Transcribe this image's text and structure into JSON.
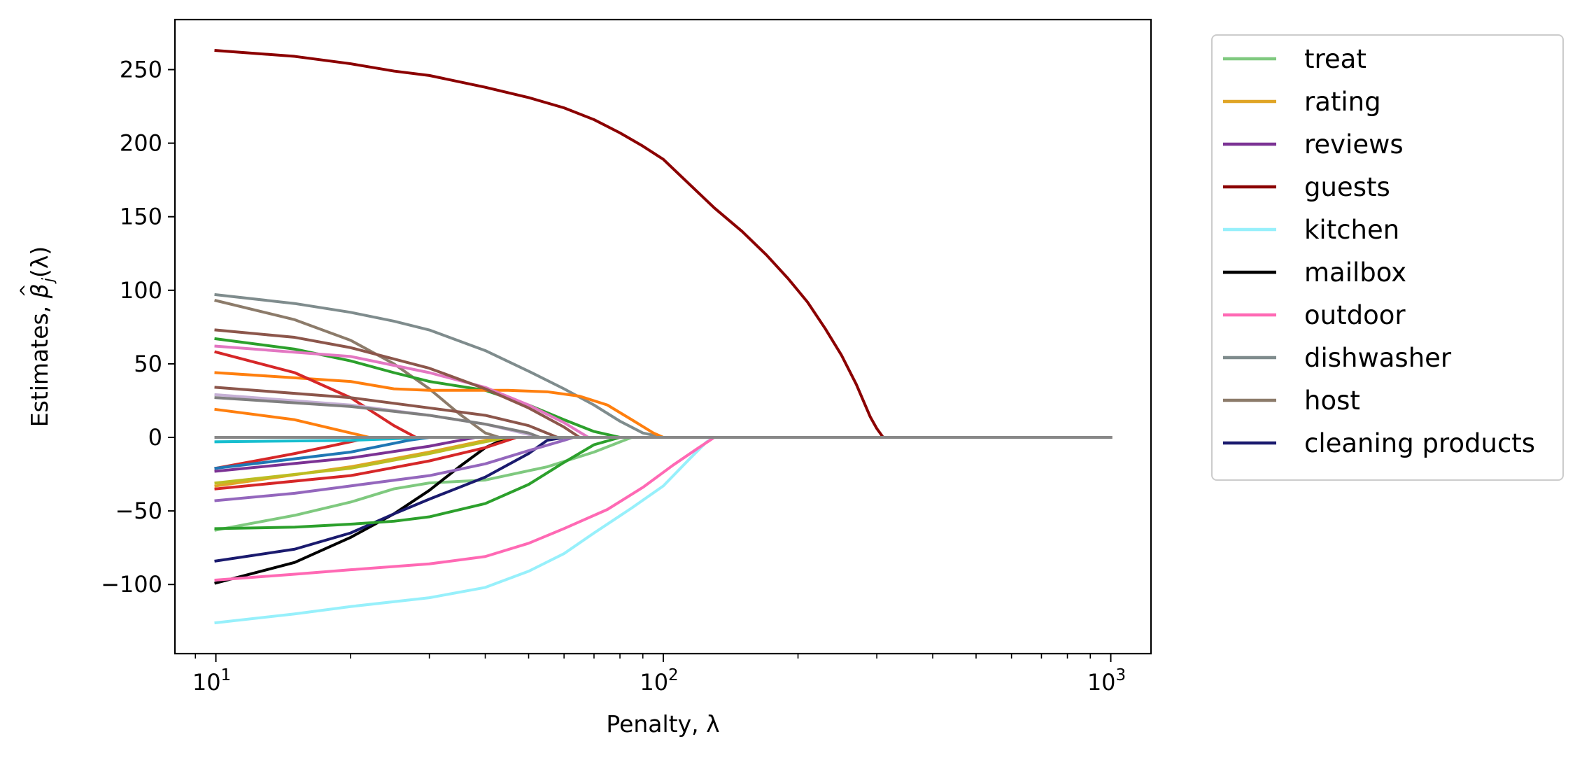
{
  "chart_data": {
    "type": "line",
    "title": "",
    "xlabel": "Penalty, λ",
    "ylabel_prefix": "Estimates, ",
    "ylabel_beta": "β",
    "ylabel_hat": "^",
    "ylabel_sub": "j",
    "ylabel_suffix": "(λ)",
    "xscale": "log",
    "xlim": [
      8.1,
      1230
    ],
    "ylim": [
      -147,
      284
    ],
    "xticks": [
      {
        "base": "10",
        "exp": "1",
        "value": 10
      },
      {
        "base": "10",
        "exp": "2",
        "value": 100
      },
      {
        "base": "10",
        "exp": "3",
        "value": 1000
      }
    ],
    "yticks": [
      {
        "value": 250,
        "label": "250"
      },
      {
        "value": 200,
        "label": "200"
      },
      {
        "value": 150,
        "label": "150"
      },
      {
        "value": 100,
        "label": "100"
      },
      {
        "value": 50,
        "label": "50"
      },
      {
        "value": 0,
        "label": "0"
      },
      {
        "value": -50,
        "label": "−50"
      },
      {
        "value": -100,
        "label": "−100"
      }
    ],
    "grid": false,
    "legend_position": "outside-right",
    "series": [
      {
        "name": "treat",
        "color": "#7fc97f",
        "legend": true,
        "points": [
          [
            10,
            -63
          ],
          [
            15,
            -53
          ],
          [
            20,
            -44
          ],
          [
            25,
            -35
          ],
          [
            30,
            -31
          ],
          [
            40,
            -29
          ],
          [
            55,
            -20
          ],
          [
            70,
            -10
          ],
          [
            85,
            0
          ],
          [
            1000,
            0
          ]
        ]
      },
      {
        "name": "rating",
        "color": "#e0a526",
        "legend": true,
        "points": [
          [
            10,
            -33
          ],
          [
            20,
            -20
          ],
          [
            30,
            -10
          ],
          [
            40,
            -2
          ],
          [
            45,
            0
          ],
          [
            1000,
            0
          ]
        ]
      },
      {
        "name": "reviews",
        "color": "#7b3294",
        "legend": true,
        "points": [
          [
            10,
            -23
          ],
          [
            20,
            -14
          ],
          [
            30,
            -6
          ],
          [
            38,
            0
          ],
          [
            1000,
            0
          ]
        ]
      },
      {
        "name": "guests",
        "color": "#8b0000",
        "legend": true,
        "points": [
          [
            10,
            263
          ],
          [
            15,
            259
          ],
          [
            20,
            254
          ],
          [
            25,
            249
          ],
          [
            30,
            246
          ],
          [
            40,
            238
          ],
          [
            50,
            231
          ],
          [
            60,
            224
          ],
          [
            70,
            216
          ],
          [
            80,
            207
          ],
          [
            90,
            198
          ],
          [
            100,
            189
          ],
          [
            110,
            177
          ],
          [
            130,
            156
          ],
          [
            150,
            140
          ],
          [
            170,
            124
          ],
          [
            190,
            108
          ],
          [
            210,
            92
          ],
          [
            230,
            74
          ],
          [
            250,
            56
          ],
          [
            270,
            36
          ],
          [
            290,
            14
          ],
          [
            300,
            6
          ],
          [
            310,
            0
          ],
          [
            1000,
            0
          ]
        ]
      },
      {
        "name": "kitchen",
        "color": "#97f0fb",
        "legend": true,
        "points": [
          [
            10,
            -126
          ],
          [
            15,
            -120
          ],
          [
            20,
            -115
          ],
          [
            30,
            -109
          ],
          [
            40,
            -102
          ],
          [
            50,
            -91
          ],
          [
            60,
            -79
          ],
          [
            70,
            -65
          ],
          [
            85,
            -48
          ],
          [
            100,
            -33
          ],
          [
            115,
            -14
          ],
          [
            125,
            -3
          ],
          [
            130,
            0
          ],
          [
            1000,
            0
          ]
        ]
      },
      {
        "name": "mailbox",
        "color": "#000000",
        "legend": true,
        "points": [
          [
            10,
            -99
          ],
          [
            15,
            -85
          ],
          [
            20,
            -68
          ],
          [
            25,
            -52
          ],
          [
            30,
            -36
          ],
          [
            35,
            -20
          ],
          [
            40,
            -7
          ],
          [
            45,
            0
          ],
          [
            1000,
            0
          ]
        ]
      },
      {
        "name": "outdoor",
        "color": "#ff69b4",
        "legend": true,
        "points": [
          [
            10,
            -97
          ],
          [
            15,
            -93
          ],
          [
            20,
            -90
          ],
          [
            30,
            -86
          ],
          [
            40,
            -81
          ],
          [
            50,
            -72
          ],
          [
            60,
            -62
          ],
          [
            75,
            -49
          ],
          [
            90,
            -34
          ],
          [
            105,
            -19
          ],
          [
            120,
            -7
          ],
          [
            130,
            0
          ],
          [
            1000,
            0
          ]
        ]
      },
      {
        "name": "dishwasher",
        "color": "#7f8c8d",
        "legend": true,
        "points": [
          [
            10,
            97
          ],
          [
            15,
            91
          ],
          [
            20,
            85
          ],
          [
            25,
            79
          ],
          [
            30,
            73
          ],
          [
            40,
            59
          ],
          [
            50,
            45
          ],
          [
            60,
            33
          ],
          [
            70,
            22
          ],
          [
            80,
            11
          ],
          [
            90,
            3
          ],
          [
            100,
            0
          ],
          [
            1000,
            0
          ]
        ]
      },
      {
        "name": "host",
        "color": "#8c7b6a",
        "legend": true,
        "points": [
          [
            10,
            93
          ],
          [
            15,
            80
          ],
          [
            20,
            66
          ],
          [
            25,
            50
          ],
          [
            30,
            33
          ],
          [
            35,
            16
          ],
          [
            40,
            3
          ],
          [
            43,
            0
          ],
          [
            1000,
            0
          ]
        ]
      },
      {
        "name": "cleaning products",
        "color": "#1a1a6e",
        "legend": true,
        "points": [
          [
            10,
            -84
          ],
          [
            15,
            -76
          ],
          [
            20,
            -65
          ],
          [
            25,
            -52
          ],
          [
            30,
            -42
          ],
          [
            40,
            -27
          ],
          [
            50,
            -11
          ],
          [
            55,
            -2
          ],
          [
            60,
            0
          ],
          [
            1000,
            0
          ]
        ]
      },
      {
        "name": "",
        "color": "#2ca02c",
        "legend": false,
        "points": [
          [
            10,
            67
          ],
          [
            15,
            60
          ],
          [
            20,
            52
          ],
          [
            25,
            44
          ],
          [
            30,
            38
          ],
          [
            40,
            32
          ],
          [
            50,
            22
          ],
          [
            60,
            12
          ],
          [
            70,
            4
          ],
          [
            80,
            0
          ],
          [
            1000,
            0
          ]
        ]
      },
      {
        "name": "",
        "color": "#2ca02c",
        "legend": false,
        "points": [
          [
            10,
            -62
          ],
          [
            15,
            -61
          ],
          [
            20,
            -59
          ],
          [
            25,
            -57
          ],
          [
            30,
            -54
          ],
          [
            40,
            -45
          ],
          [
            50,
            -32
          ],
          [
            60,
            -17
          ],
          [
            70,
            -5
          ],
          [
            80,
            0
          ],
          [
            1000,
            0
          ]
        ]
      },
      {
        "name": "",
        "color": "#ff7f0e",
        "legend": true,
        "points": [
          [
            10,
            44
          ],
          [
            20,
            38
          ],
          [
            25,
            33
          ],
          [
            30,
            32
          ],
          [
            45,
            32
          ],
          [
            55,
            31
          ],
          [
            65,
            28
          ],
          [
            75,
            22
          ],
          [
            85,
            12
          ],
          [
            95,
            3
          ],
          [
            100,
            0
          ],
          [
            1000,
            0
          ]
        ]
      },
      {
        "name": "",
        "color": "#ff7f0e",
        "legend": false,
        "points": [
          [
            10,
            19
          ],
          [
            15,
            12
          ],
          [
            20,
            3
          ],
          [
            22,
            0
          ],
          [
            1000,
            0
          ]
        ]
      },
      {
        "name": "",
        "color": "#d62728",
        "legend": false,
        "points": [
          [
            10,
            58
          ],
          [
            15,
            44
          ],
          [
            20,
            27
          ],
          [
            25,
            8
          ],
          [
            28,
            0
          ],
          [
            1000,
            0
          ]
        ]
      },
      {
        "name": "",
        "color": "#d62728",
        "legend": false,
        "points": [
          [
            10,
            -35
          ],
          [
            20,
            -26
          ],
          [
            30,
            -16
          ],
          [
            40,
            -7
          ],
          [
            47,
            0
          ],
          [
            1000,
            0
          ]
        ]
      },
      {
        "name": "",
        "color": "#d62728",
        "legend": false,
        "points": [
          [
            10,
            -21
          ],
          [
            15,
            -11
          ],
          [
            20,
            -3
          ],
          [
            22,
            0
          ],
          [
            1000,
            0
          ]
        ]
      },
      {
        "name": "",
        "color": "#e377c2",
        "legend": false,
        "points": [
          [
            10,
            62
          ],
          [
            20,
            55
          ],
          [
            30,
            44
          ],
          [
            40,
            34
          ],
          [
            50,
            22
          ],
          [
            60,
            10
          ],
          [
            68,
            0
          ],
          [
            1000,
            0
          ]
        ]
      },
      {
        "name": "",
        "color": "#8c564b",
        "legend": false,
        "points": [
          [
            10,
            73
          ],
          [
            15,
            68
          ],
          [
            20,
            61
          ],
          [
            30,
            47
          ],
          [
            40,
            33
          ],
          [
            50,
            20
          ],
          [
            60,
            7
          ],
          [
            65,
            0
          ],
          [
            1000,
            0
          ]
        ]
      },
      {
        "name": "",
        "color": "#8c564b",
        "legend": false,
        "points": [
          [
            10,
            34
          ],
          [
            20,
            27
          ],
          [
            30,
            20
          ],
          [
            40,
            15
          ],
          [
            50,
            8
          ],
          [
            58,
            0
          ],
          [
            1000,
            0
          ]
        ]
      },
      {
        "name": "",
        "color": "#c5b0d5",
        "legend": false,
        "points": [
          [
            10,
            29
          ],
          [
            20,
            22
          ],
          [
            30,
            15
          ],
          [
            40,
            9
          ],
          [
            50,
            2
          ],
          [
            52,
            0
          ],
          [
            1000,
            0
          ]
        ]
      },
      {
        "name": "",
        "color": "#7f7f7f",
        "legend": false,
        "points": [
          [
            10,
            27
          ],
          [
            20,
            21
          ],
          [
            30,
            15
          ],
          [
            40,
            9
          ],
          [
            50,
            3
          ],
          [
            53,
            0
          ],
          [
            1000,
            0
          ]
        ]
      },
      {
        "name": "",
        "color": "#9467bd",
        "legend": false,
        "points": [
          [
            10,
            -43
          ],
          [
            15,
            -38
          ],
          [
            20,
            -33
          ],
          [
            30,
            -26
          ],
          [
            40,
            -18
          ],
          [
            50,
            -9
          ],
          [
            60,
            -2
          ],
          [
            63,
            0
          ],
          [
            1000,
            0
          ]
        ]
      },
      {
        "name": "",
        "color": "#bcbd22",
        "legend": false,
        "points": [
          [
            10,
            -31
          ],
          [
            20,
            -21
          ],
          [
            30,
            -11
          ],
          [
            40,
            -3
          ],
          [
            45,
            0
          ],
          [
            1000,
            0
          ]
        ]
      },
      {
        "name": "",
        "color": "#1f77b4",
        "legend": false,
        "points": [
          [
            10,
            -21
          ],
          [
            20,
            -10
          ],
          [
            27,
            -2
          ],
          [
            30,
            0
          ],
          [
            1000,
            0
          ]
        ]
      },
      {
        "name": "",
        "color": "#17becf",
        "legend": false,
        "points": [
          [
            10,
            -3
          ],
          [
            20,
            -2
          ],
          [
            30,
            0
          ],
          [
            1000,
            0
          ]
        ]
      },
      {
        "name": "",
        "color": "#888888",
        "legend": false,
        "points": [
          [
            10,
            0
          ],
          [
            1000,
            0
          ]
        ]
      }
    ]
  }
}
